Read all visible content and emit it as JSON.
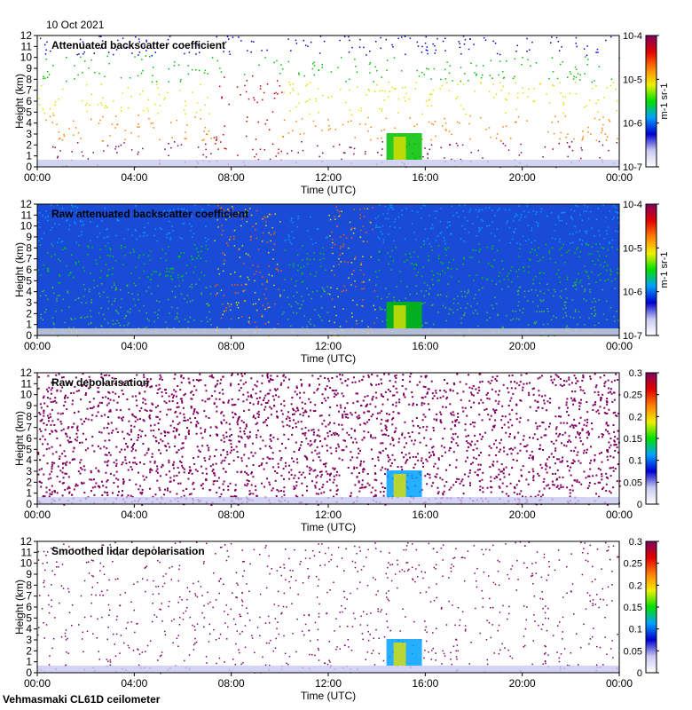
{
  "header": {
    "date": "10 Oct 2021"
  },
  "footer": {
    "instrument": "Vehmasmaki CL61D ceilometer"
  },
  "chart_data": [
    {
      "type": "heatmap",
      "title": "Attenuated backscatter coefficient",
      "xlabel": "Time (UTC)",
      "ylabel": "Height (km)",
      "x_ticks": [
        "00:00",
        "04:00",
        "08:00",
        "12:00",
        "16:00",
        "20:00",
        "00:00"
      ],
      "y_ticks": [
        "0",
        "1",
        "2",
        "3",
        "4",
        "5",
        "6",
        "7",
        "8",
        "9",
        "10",
        "11",
        "12"
      ],
      "ylim": [
        0,
        12
      ],
      "colorbar": {
        "scale": "log",
        "ticks": [
          "10-7",
          "10-6",
          "10-5",
          "10-4"
        ],
        "unit": "m-1 sr-1"
      }
    },
    {
      "type": "heatmap",
      "title": "Raw attenuated backscatter coefficient",
      "xlabel": "Time (UTC)",
      "ylabel": "Height (km)",
      "x_ticks": [
        "00:00",
        "04:00",
        "08:00",
        "12:00",
        "16:00",
        "20:00",
        "00:00"
      ],
      "y_ticks": [
        "0",
        "1",
        "2",
        "3",
        "4",
        "5",
        "6",
        "7",
        "8",
        "9",
        "10",
        "11",
        "12"
      ],
      "ylim": [
        0,
        12
      ],
      "colorbar": {
        "scale": "log",
        "ticks": [
          "10-7",
          "10-6",
          "10-5",
          "10-4"
        ],
        "unit": "m-1 sr-1"
      }
    },
    {
      "type": "heatmap",
      "title": "Raw depolarisation",
      "xlabel": "Time (UTC)",
      "ylabel": "Height (km)",
      "x_ticks": [
        "00:00",
        "04:00",
        "08:00",
        "12:00",
        "16:00",
        "20:00",
        "00:00"
      ],
      "y_ticks": [
        "0",
        "1",
        "2",
        "3",
        "4",
        "5",
        "6",
        "7",
        "8",
        "9",
        "10",
        "11",
        "12"
      ],
      "ylim": [
        0,
        12
      ],
      "colorbar": {
        "scale": "linear",
        "ticks": [
          "0",
          "0.05",
          "0.1",
          "0.15",
          "0.2",
          "0.25",
          "0.3"
        ],
        "unit": ""
      }
    },
    {
      "type": "heatmap",
      "title": "Smoothed lidar depolarisation",
      "xlabel": "Time (UTC)",
      "ylabel": "Height (km)",
      "x_ticks": [
        "00:00",
        "04:00",
        "08:00",
        "12:00",
        "16:00",
        "20:00",
        "00:00"
      ],
      "y_ticks": [
        "0",
        "1",
        "2",
        "3",
        "4",
        "5",
        "6",
        "7",
        "8",
        "9",
        "10",
        "11",
        "12"
      ],
      "ylim": [
        0,
        12
      ],
      "colorbar": {
        "scale": "linear",
        "ticks": [
          "0",
          "0.05",
          "0.1",
          "0.15",
          "0.2",
          "0.25",
          "0.3"
        ],
        "unit": ""
      }
    }
  ]
}
